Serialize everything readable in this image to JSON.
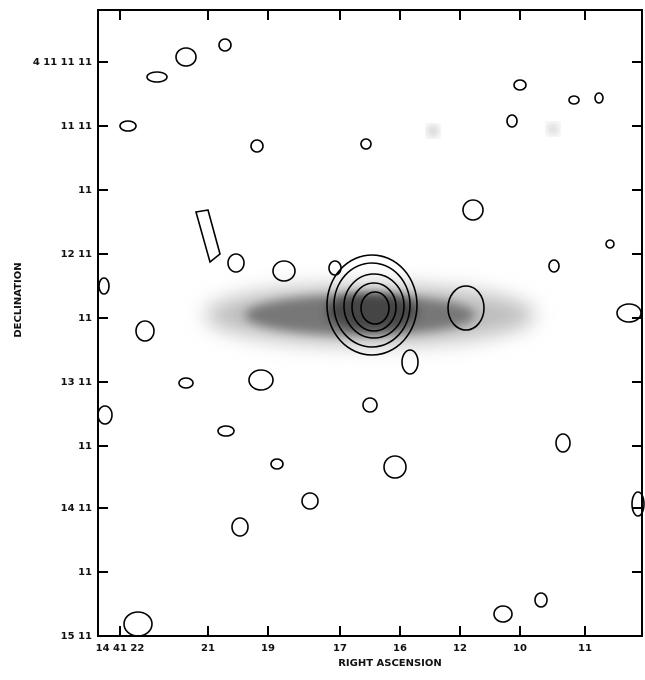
{
  "figure": {
    "x_label": "RIGHT ASCENSION",
    "y_label": "DECLINATION",
    "x_tick_labels": [
      "14 41 22",
      "21",
      "19",
      "17",
      "16",
      "12",
      "10",
      "11"
    ],
    "y_tick_labels": [
      "4 11 11 11",
      "11 11",
      "11",
      "12 11",
      "11",
      "13 11",
      "11",
      "14 11",
      "11",
      "15 11"
    ]
  }
}
